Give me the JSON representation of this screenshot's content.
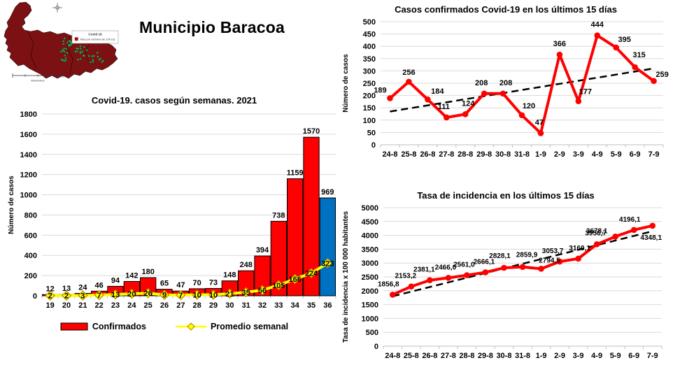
{
  "page": {
    "title": "Municipio Baracoa"
  },
  "map": {
    "legend_title": "Covid 19",
    "legend_item": "Tasa por semana de 100  (3)",
    "scale_label": "Kilometros",
    "region_color": "#7B1113",
    "dot_color": "#00B050",
    "legend_swatch_color": "#C00000"
  },
  "colors": {
    "bar_red": "#FF0000",
    "bar_blue": "#0070C0",
    "line_red": "#FF0000",
    "avg_yellow": "#FFFF00",
    "avg_marker_border": "#BF9000",
    "trend_black": "#000000",
    "grid_gray": "#D9D9D9"
  },
  "chart_data": [
    {
      "id": "weekly",
      "type": "bar",
      "title": "Covid-19. casos según semanas. 2021",
      "ylabel": "Número de casos",
      "ylim": [
        0,
        1800
      ],
      "ytick_step": 200,
      "grid": true,
      "legend_position": "bottom",
      "categories": [
        "19",
        "20",
        "21",
        "22",
        "23",
        "24",
        "25",
        "26",
        "27",
        "28",
        "29",
        "30",
        "31",
        "32",
        "33",
        "34",
        "35",
        "36"
      ],
      "series": [
        {
          "name": "Confirmados",
          "type": "bar",
          "color": "#FF0000",
          "last_color": "#0070C0",
          "values": [
            12,
            13,
            24,
            46,
            94,
            142,
            180,
            65,
            47,
            70,
            73,
            148,
            248,
            394,
            738,
            1159,
            1570,
            969
          ]
        },
        {
          "name": "Promedio semanal",
          "type": "line",
          "color": "#FFFF00",
          "marker": "diamond",
          "marker_stroke": "#BF9000",
          "label_pos": "on",
          "values": [
            2,
            2,
            3,
            7,
            13,
            20,
            26,
            9,
            7,
            10,
            10,
            21,
            35,
            56,
            105,
            166,
            224,
            323
          ]
        }
      ]
    },
    {
      "id": "cases15",
      "type": "line",
      "title": "Casos confirmados Covid-19 en los últimos 15 días",
      "ylabel": "Número de casos",
      "ylim": [
        0,
        500
      ],
      "ytick_step": 50,
      "grid": true,
      "trend": [
        135,
        310
      ],
      "categories": [
        "24-8",
        "25-8",
        "26-8",
        "27-8",
        "28-8",
        "29-8",
        "30-8",
        "31-8",
        "1-9",
        "2-9",
        "3-9",
        "4-9",
        "5-9",
        "6-9",
        "7-9"
      ],
      "series": [
        {
          "name": "Casos confirmados",
          "type": "line",
          "color": "#FF0000",
          "marker": "circle",
          "values": [
            189,
            256,
            184,
            111,
            124,
            208,
            208,
            120,
            47,
            366,
            177,
            444,
            395,
            315,
            259
          ],
          "label_dx": [
            -14,
            0,
            14,
            -4,
            4,
            -4,
            4,
            10,
            -2,
            0,
            10,
            0,
            12,
            6,
            12
          ],
          "label_dy": [
            -8,
            -10,
            -8,
            -12,
            -12,
            -12,
            -12,
            -10,
            -12,
            -12,
            -10,
            -12,
            -8,
            -14,
            -6
          ]
        }
      ]
    },
    {
      "id": "incidence15",
      "type": "line",
      "title": "Tasa de incidencia  en los últimos 15 días",
      "ylabel": "Tasa de incidencia x 100 000 habitantes",
      "ylim": [
        0,
        5000
      ],
      "ytick_step": 500,
      "grid": true,
      "trend": [
        1800,
        4150
      ],
      "categories": [
        "24-8",
        "25-8",
        "26-8",
        "27-8",
        "28-8",
        "29-8",
        "30-8",
        "31-8",
        "1-9",
        "2-9",
        "3-9",
        "4-9",
        "5-9",
        "6-9",
        "7-9"
      ],
      "series": [
        {
          "name": "Tasa de incidencia",
          "type": "line",
          "color": "#FF0000",
          "marker": "circle",
          "small_labels": true,
          "values": [
            1856.8,
            2153.2,
            2381.1,
            2466.0,
            2561.0,
            2666.1,
            2828.1,
            2859.9,
            2794.5,
            3053.7,
            3160.1,
            3678.1,
            3956.7,
            4196.1,
            4348.1
          ],
          "labels": [
            "1856,8",
            "2153,2",
            "2381,1",
            "2466,0",
            "2561,0",
            "2666,1",
            "2828,1",
            "2859,9",
            "2794,5",
            "3053,7",
            "3160,1",
            "3678,1",
            "3956,7",
            "4196,1",
            "4348,1"
          ],
          "label_dx": [
            -6,
            -8,
            -8,
            -4,
            -4,
            -2,
            -6,
            6,
            12,
            -10,
            2,
            0,
            -28,
            -6,
            -2
          ],
          "label_dy": [
            -12,
            -12,
            -12,
            -12,
            -12,
            -12,
            -14,
            -14,
            -9,
            -12,
            -12,
            -16,
            -2,
            -12,
            20
          ]
        }
      ]
    }
  ]
}
